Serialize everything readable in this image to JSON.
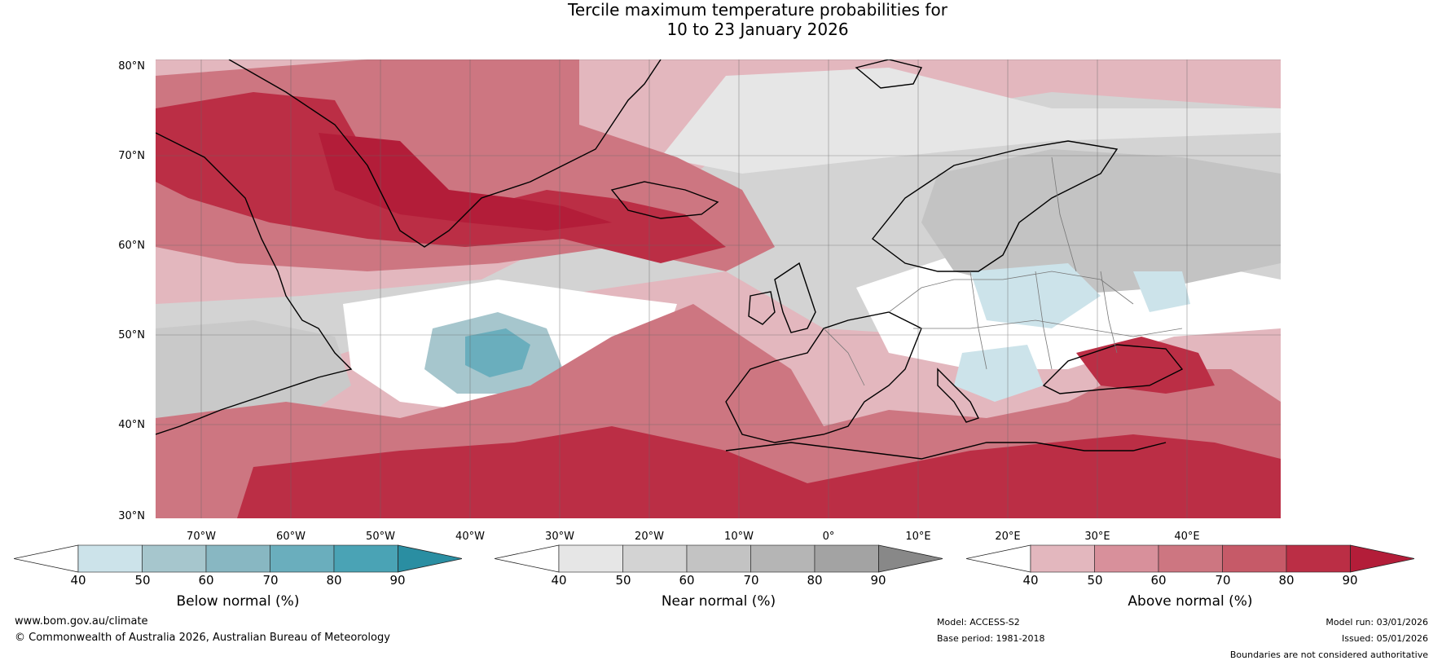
{
  "title": {
    "line1": "Tercile maximum temperature probabilities for",
    "line2": "10 to 23 January 2026"
  },
  "map": {
    "lat_labels": [
      "80°N",
      "70°N",
      "60°N",
      "50°N",
      "40°N",
      "30°N"
    ],
    "lon_labels": [
      "70°W",
      "60°W",
      "50°W",
      "40°W",
      "30°W",
      "20°W",
      "10°W",
      "0°",
      "10°E",
      "20°E",
      "30°E",
      "40°E"
    ]
  },
  "colorbars": {
    "below": {
      "label": "Below normal (%)",
      "ticks": [
        "40",
        "50",
        "60",
        "70",
        "80",
        "90"
      ],
      "colors": [
        "#ffffff",
        "#cce3ea",
        "#a6c6cd",
        "#88b7c2",
        "#6aaebd",
        "#4aa3b5",
        "#2a8ea2"
      ]
    },
    "near": {
      "label": "Near normal (%)",
      "ticks": [
        "40",
        "50",
        "60",
        "70",
        "80",
        "90"
      ],
      "colors": [
        "#ffffff",
        "#e6e6e6",
        "#d3d3d3",
        "#c3c3c3",
        "#b5b5b5",
        "#a3a3a3",
        "#888888"
      ]
    },
    "above": {
      "label": "Above normal (%)",
      "ticks": [
        "40",
        "50",
        "60",
        "70",
        "80",
        "90"
      ],
      "colors": [
        "#ffffff",
        "#e3b7be",
        "#d8909b",
        "#cd7681",
        "#c65a68",
        "#bb2e45",
        "#b31d39"
      ]
    }
  },
  "footer": {
    "website": "www.bom.gov.au/climate",
    "copyright": "© Commonwealth of Australia 2026, Australian Bureau of Meteorology",
    "model": "Model: ACCESS-S2",
    "base_period": "Base period: 1981-2018",
    "model_run": "Model run: 03/01/2026",
    "issued": "Issued: 05/01/2026",
    "disclaimer": "Boundaries are not considered authoritative"
  }
}
